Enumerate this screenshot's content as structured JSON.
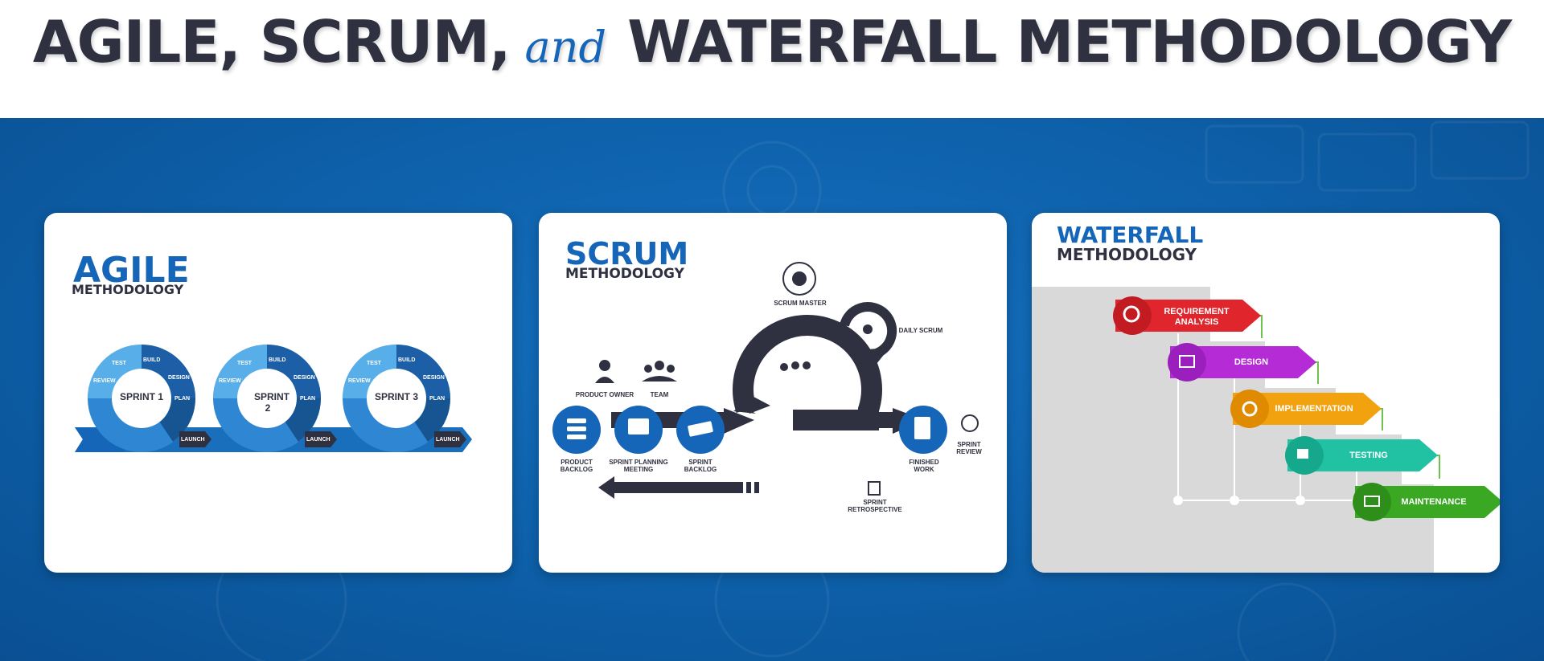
{
  "header": {
    "title_part1": "AGILE, SCRUM,",
    "title_and": "and",
    "title_part2": "WATERFALL METHODOLOGY"
  },
  "colors": {
    "brand_blue": "#1565b8",
    "dark": "#2f3140",
    "band_blue": "#0d5fa8"
  },
  "agile": {
    "title": "AGILE",
    "subtitle": "METHODOLOGY",
    "sprints": [
      {
        "label": "SPRINT 1"
      },
      {
        "label": "SPRINT 2"
      },
      {
        "label": "SPRINT 3"
      }
    ],
    "cycle_labels": {
      "test": "TEST",
      "build": "BUILD",
      "review": "REVIEW",
      "design": "DESIGN",
      "plan": "PLAN",
      "launch": "LAUNCH"
    }
  },
  "scrum": {
    "title": "SCRUM",
    "subtitle": "METHODOLOGY",
    "scrum_master": "SCRUM MASTER",
    "daily_scrum": "DAILY SCRUM",
    "product_owner": "PRODUCT OWNER",
    "team": "TEAM",
    "product_backlog": "PRODUCT BACKLOG",
    "sprint_planning": "SPRINT PLANNING MEETING",
    "sprint_backlog": "SPRINT BACKLOG",
    "finished_work": "FINISHED WORK",
    "sprint_review": "SPRINT REVIEW",
    "sprint_retrospective": "SPRINT RETROSPECTIVE"
  },
  "waterfall": {
    "title": "WATERFALL",
    "subtitle": "METHODOLOGY",
    "steps": [
      {
        "label": "REQUIREMENT ANALYSIS",
        "color": "#e0262c",
        "icon": "magnifier-chart-icon"
      },
      {
        "label": "DESIGN",
        "color": "#b52bd6",
        "icon": "design-tools-icon"
      },
      {
        "label": "IMPLEMENTATION",
        "color": "#f2a20f",
        "icon": "gears-icon"
      },
      {
        "label": "TESTING",
        "color": "#21c2a4",
        "icon": "testing-magnifier-icon"
      },
      {
        "label": "MAINTENANCE",
        "color": "#3aa823",
        "icon": "maintenance-tools-icon"
      }
    ]
  }
}
